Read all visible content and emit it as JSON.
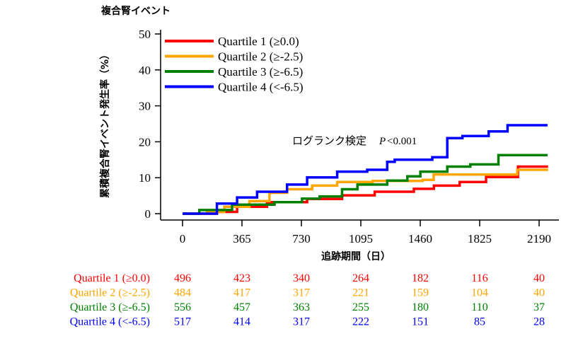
{
  "chart_data": {
    "type": "line",
    "step": true,
    "title": "複合腎イベント",
    "xlabel": "追跡期間（日）",
    "ylabel": "累積複合腎イベント発生率（%）",
    "xlim": [
      0,
      2250
    ],
    "ylim": [
      0,
      50
    ],
    "xticks": [
      0,
      365,
      730,
      1095,
      1460,
      1825,
      2190
    ],
    "yticks": [
      0,
      10,
      20,
      30,
      40,
      50
    ],
    "grid": false,
    "legend_position": "top-left",
    "annotation": {
      "label": "ログランク検定",
      "p_italic": "P",
      "p_value": "<0.001"
    },
    "series": [
      {
        "name": "Quartile 1 (≥0.0)",
        "color": "#ff0000",
        "x": [
          0,
          100,
          211,
          335,
          519,
          765,
          980,
          1180,
          1421,
          1544,
          1702,
          1864,
          2060,
          2245
        ],
        "y": [
          0,
          0,
          0.5,
          1.9,
          3.2,
          4.1,
          5.1,
          6.1,
          6.9,
          7.8,
          8.8,
          10.2,
          13.1,
          13.1
        ]
      },
      {
        "name": "Quartile 2 (≥-2.5)",
        "color": "#ffa500",
        "x": [
          0,
          100,
          150,
          257,
          411,
          534,
          642,
          796,
          950,
          1168,
          1474,
          1542,
          2056,
          2245
        ],
        "y": [
          0,
          0,
          0.5,
          1.9,
          3.5,
          5.8,
          6.8,
          7.8,
          8.8,
          9.1,
          9.4,
          10.9,
          12.2,
          12.2
        ]
      },
      {
        "name": "Quartile 3 (≥-6.5)",
        "color": "#008000",
        "x": [
          0,
          95,
          103,
          304,
          565,
          734,
          842,
          980,
          1074,
          1257,
          1381,
          1461,
          1626,
          1767,
          1940,
          2242
        ],
        "y": [
          0,
          0,
          1.0,
          2.5,
          3.2,
          4.2,
          4.8,
          6.8,
          8.1,
          9.2,
          10.4,
          11.7,
          13.1,
          13.7,
          16.3,
          16.3
        ]
      },
      {
        "name": "Quartile 4 (<-6.5)",
        "color": "#0000ff",
        "x": [
          0,
          103,
          211,
          335,
          458,
          642,
          765,
          950,
          1134,
          1257,
          1303,
          1534,
          1626,
          1719,
          1880,
          1996,
          2242
        ],
        "y": [
          0,
          0,
          2.8,
          4.5,
          6.1,
          8.1,
          10.1,
          11.7,
          12.2,
          14.4,
          15.0,
          15.7,
          21.0,
          21.6,
          22.9,
          24.6,
          24.6
        ]
      }
    ],
    "risk_table": {
      "times": [
        0,
        365,
        730,
        1095,
        1460,
        1825,
        2190
      ],
      "rows": [
        {
          "label": "Quartile 1 (≥0.0)",
          "color": "#ff0000",
          "values": [
            "496",
            "423",
            "340",
            "264",
            "182",
            "116",
            "40"
          ]
        },
        {
          "label": "Quartile 2 (≥-2.5)",
          "color": "#ffa500",
          "values": [
            "484",
            "417",
            "317",
            "221",
            "159",
            "104",
            "40"
          ]
        },
        {
          "label": "Quartile 3 (≥-6.5)",
          "color": "#008000",
          "values": [
            "556",
            "457",
            "363",
            "255",
            "180",
            "110",
            "37"
          ]
        },
        {
          "label": "Quartile 4 (<-6.5)",
          "color": "#0000ff",
          "values": [
            "517",
            "414",
            "317",
            "222",
            "151",
            "85",
            "28"
          ]
        }
      ]
    }
  }
}
